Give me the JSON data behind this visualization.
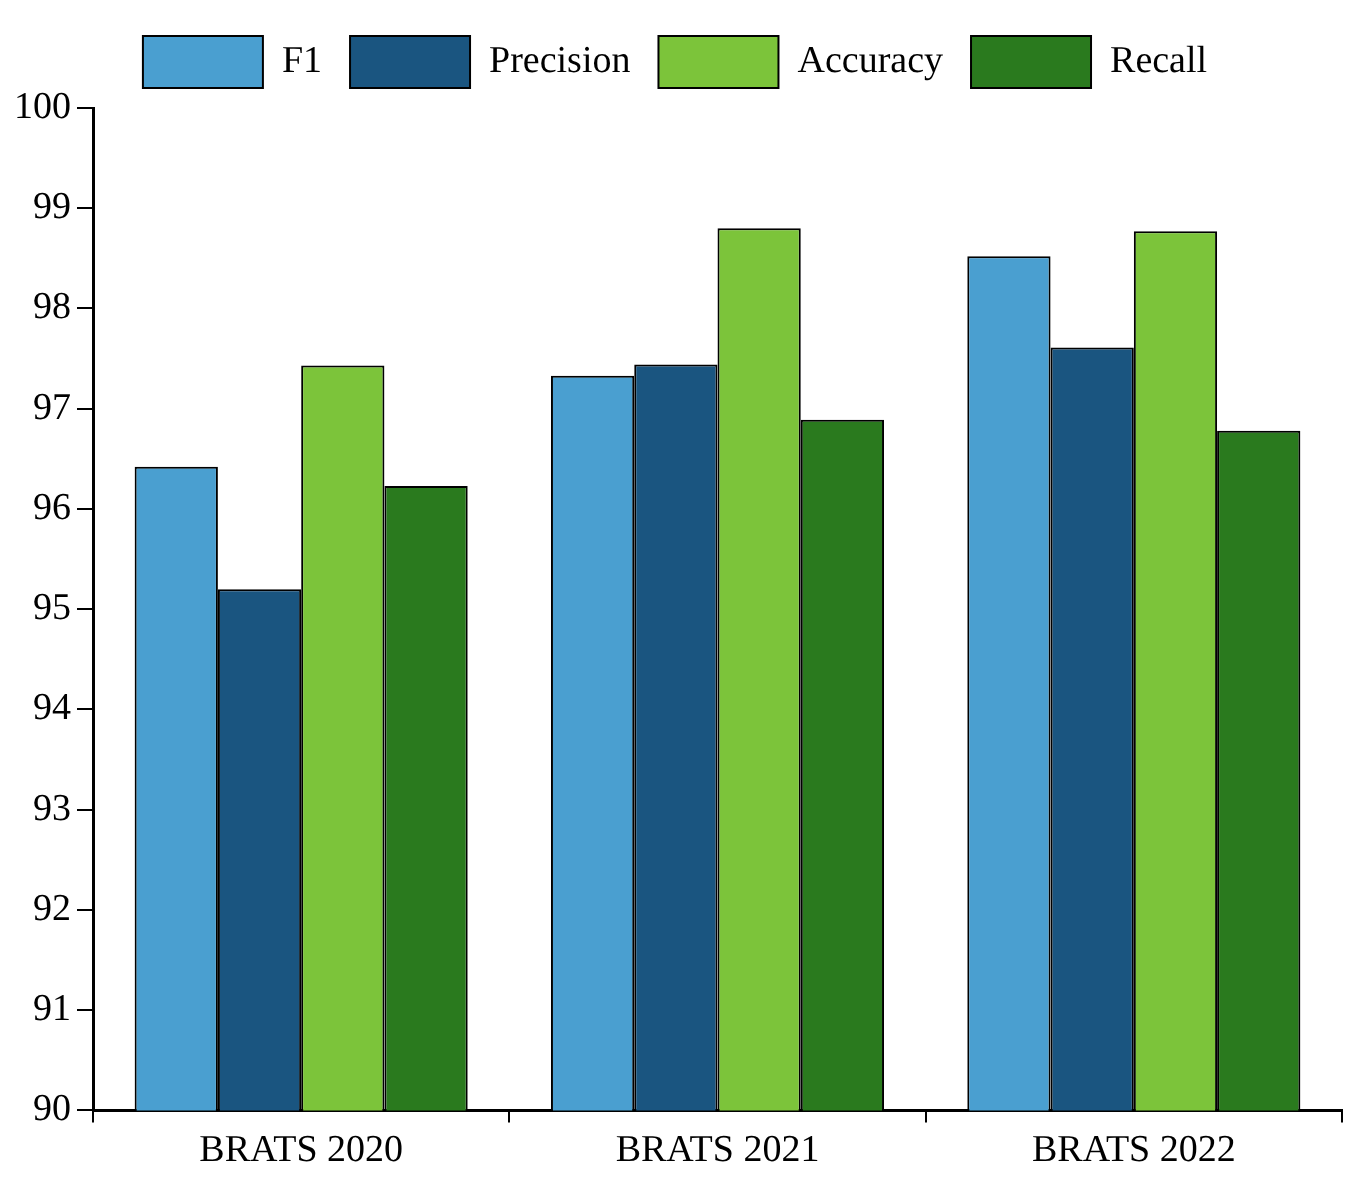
{
  "chart_data": {
    "type": "bar",
    "categories": [
      "BRATS 2020",
      "BRATS 2021",
      "BRATS 2022"
    ],
    "series": [
      {
        "name": "F1",
        "color": "#4a9fd0",
        "values": [
          96.42,
          97.33,
          98.52
        ]
      },
      {
        "name": "Precision",
        "color": "#1a5580",
        "values": [
          95.2,
          97.44,
          97.61
        ]
      },
      {
        "name": "Accuracy",
        "color": "#7cc43a",
        "values": [
          97.43,
          98.8,
          98.77
        ]
      },
      {
        "name": "Recall",
        "color": "#2a7a1e",
        "values": [
          96.23,
          96.89,
          96.78
        ]
      }
    ],
    "ylim": [
      90,
      100
    ],
    "yticks": [
      90,
      91,
      92,
      93,
      94,
      95,
      96,
      97,
      98,
      99,
      100
    ],
    "grid": false,
    "legend": "top"
  }
}
